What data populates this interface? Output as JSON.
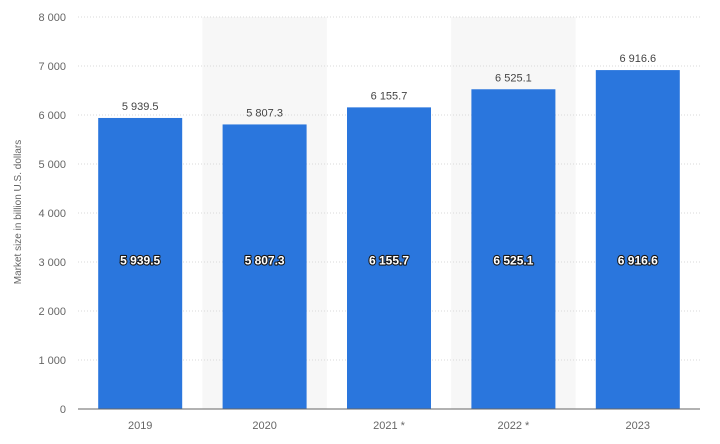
{
  "chart_data": {
    "type": "bar",
    "categories": [
      "2019",
      "2020",
      "2021 *",
      "2022 *",
      "2023"
    ],
    "values": [
      5939.5,
      5807.3,
      6155.7,
      6525.1,
      6916.6
    ],
    "value_labels": [
      "5 939.5",
      "5 807.3",
      "6 155.7",
      "6 525.1",
      "6 916.6"
    ],
    "ylabel": "Market size in billion U.S. dollars",
    "ylim": [
      0,
      8000
    ],
    "yticks": [
      0,
      1000,
      2000,
      3000,
      4000,
      5000,
      6000,
      7000,
      8000
    ],
    "ytick_labels": [
      "0",
      "1 000",
      "2 000",
      "3 000",
      "4 000",
      "5 000",
      "6 000",
      "7 000",
      "8 000"
    ],
    "grid": true,
    "shaded_columns": [
      "2020",
      "2022 *"
    ],
    "colors": {
      "bar": "#2a76dd",
      "shade": "#f7f7f7",
      "grid": "#d9d9d9",
      "axis_text": "#666666",
      "label_text": "#444444"
    }
  }
}
